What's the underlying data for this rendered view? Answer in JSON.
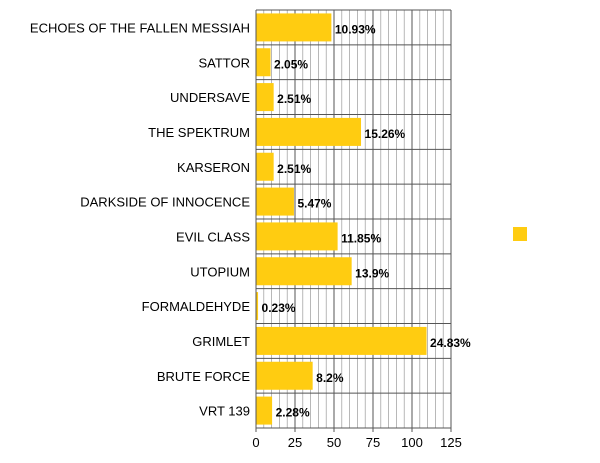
{
  "chart_data": {
    "type": "bar",
    "orientation": "horizontal",
    "categories": [
      "ECHOES OF THE FALLEN MESSIAH",
      "SATTOR",
      "UNDERSAVE",
      "THE SPEKTRUM",
      "KARSERON",
      "DARKSIDE OF INNOCENCE",
      "EVIL CLASS",
      "UTOPIUM",
      "FORMALDEHYDE",
      "GRIMLET",
      "BRUTE FORCE",
      "VRT 139"
    ],
    "series": [
      {
        "values": [
          48,
          9,
          11,
          67,
          11,
          24,
          52,
          61,
          1,
          109,
          36,
          10
        ],
        "data_labels": [
          "10.93%",
          "2.05%",
          "2.51%",
          "15.26%",
          "2.51%",
          "5.47%",
          "11.85%",
          "13.9%",
          "0.23%",
          "24.83%",
          "8.2%",
          "2.28%"
        ]
      }
    ],
    "xlim": [
      0,
      125
    ],
    "xticks": [
      "0",
      "25",
      "50",
      "75",
      "100",
      "125"
    ],
    "grid": "vertical",
    "legend": "right",
    "bar_color": "#FFCC11"
  }
}
